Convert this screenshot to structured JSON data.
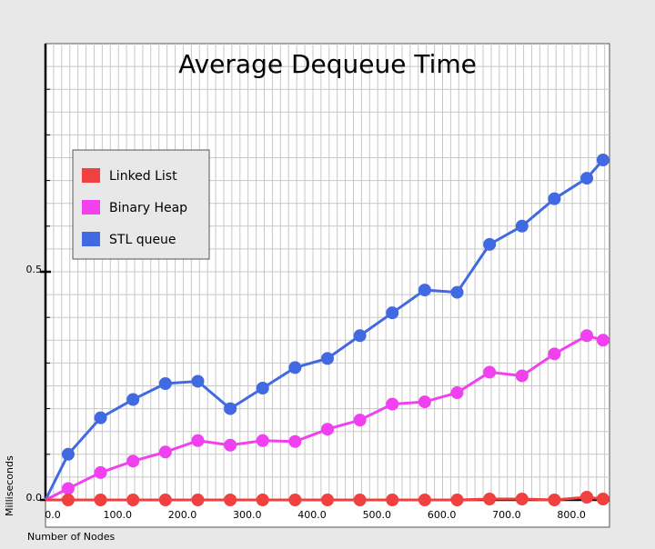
{
  "chart_data": {
    "type": "line",
    "title": "Average Dequeue Time",
    "xlabel": "Number of Nodes",
    "ylabel": "Milliseconds",
    "xlim": [
      0,
      870
    ],
    "ylim": [
      0,
      1.0
    ],
    "x_ticks": [
      "0.0",
      "100.0",
      "200.0",
      "300.0",
      "400.0",
      "500.0",
      "600.0",
      "700.0",
      "800.0"
    ],
    "y_ticks": [
      "0.0",
      "0.5"
    ],
    "grid": true,
    "legend_position": "upper-left",
    "x": [
      0,
      35,
      85,
      135,
      185,
      235,
      285,
      335,
      385,
      435,
      485,
      535,
      585,
      635,
      685,
      735,
      785,
      835,
      860
    ],
    "series": [
      {
        "name": "Linked List",
        "color": "#f04040",
        "values": [
          0.0,
          0.0,
          0.0,
          0.0,
          0.0,
          0.0,
          0.0,
          0.0,
          0.0,
          0.0,
          0.0,
          0.0,
          0.0,
          0.0,
          0.002,
          0.002,
          0.0,
          0.006,
          0.002
        ]
      },
      {
        "name": "Binary Heap",
        "color": "#f040f0",
        "values": [
          0.0,
          0.025,
          0.06,
          0.085,
          0.105,
          0.13,
          0.12,
          0.13,
          0.128,
          0.155,
          0.175,
          0.21,
          0.215,
          0.235,
          0.28,
          0.272,
          0.32,
          0.36,
          0.35
        ]
      },
      {
        "name": "STL queue",
        "color": "#4169e1",
        "values": [
          0.0,
          0.1,
          0.18,
          0.22,
          0.255,
          0.26,
          0.2,
          0.245,
          0.29,
          0.31,
          0.36,
          0.41,
          0.46,
          0.455,
          0.56,
          0.6,
          0.66,
          0.705,
          0.745
        ]
      }
    ]
  }
}
